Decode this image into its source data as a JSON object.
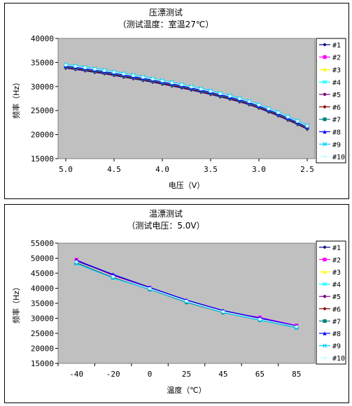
{
  "chart_data": [
    {
      "type": "line",
      "title": "压漂测试",
      "subtitle": "（测试温度：室温27℃）",
      "xlabel": "电压（V）",
      "ylabel": "频率（Hz）",
      "x": [
        5.0,
        4.9,
        4.8,
        4.7,
        4.6,
        4.5,
        4.4,
        4.3,
        4.2,
        4.1,
        4.0,
        3.9,
        3.8,
        3.7,
        3.6,
        3.5,
        3.4,
        3.3,
        3.2,
        3.1,
        3.0,
        2.9,
        2.8,
        2.7,
        2.6,
        2.5
      ],
      "xlim": [
        5.0,
        2.5
      ],
      "xticks": [
        "5.0",
        "4.5",
        "4.0",
        "3.5",
        "3.0",
        "2.5"
      ],
      "ylim": [
        15000,
        40000
      ],
      "yticks": [
        "15000",
        "20000",
        "25000",
        "30000",
        "35000",
        "40000"
      ],
      "grid": "none",
      "legend_position": "right",
      "series": [
        {
          "name": "#1",
          "color": "#000080",
          "values": [
            33800,
            33550,
            33250,
            32950,
            32650,
            32300,
            31950,
            31600,
            31250,
            30900,
            30500,
            30100,
            29700,
            29250,
            28800,
            28350,
            27850,
            27350,
            26800,
            26200,
            25500,
            24700,
            23900,
            23000,
            22100,
            21100
          ]
        },
        {
          "name": "#2",
          "color": "#ff00ff",
          "values": [
            34200,
            33950,
            33650,
            33350,
            33050,
            32700,
            32350,
            32000,
            31650,
            31300,
            30900,
            30500,
            30100,
            29650,
            29200,
            28750,
            28250,
            27750,
            27200,
            26600,
            25900,
            25100,
            24300,
            23400,
            22500,
            21500
          ]
        },
        {
          "name": "#3",
          "color": "#ffff00",
          "values": [
            34400,
            34150,
            33850,
            33550,
            33250,
            32900,
            32550,
            32200,
            31850,
            31500,
            31100,
            30700,
            30300,
            29850,
            29400,
            28950,
            28450,
            27950,
            27400,
            26800,
            26100,
            25300,
            24500,
            23600,
            22700,
            21700
          ]
        },
        {
          "name": "#4",
          "color": "#00ffff",
          "values": [
            34500,
            34250,
            33950,
            33650,
            33350,
            33000,
            32650,
            32300,
            31950,
            31600,
            31200,
            30800,
            30400,
            29950,
            29500,
            29050,
            28550,
            28050,
            27500,
            26900,
            26200,
            25400,
            24600,
            23700,
            22800,
            21800
          ]
        },
        {
          "name": "#5",
          "color": "#800080",
          "values": [
            33900,
            33650,
            33350,
            33050,
            32750,
            32400,
            32050,
            31700,
            31350,
            31000,
            30600,
            30200,
            29800,
            29350,
            28900,
            28450,
            27950,
            27450,
            26900,
            26300,
            25600,
            24800,
            24000,
            23100,
            22200,
            21200
          ]
        },
        {
          "name": "#6",
          "color": "#800000",
          "values": [
            34000,
            33750,
            33450,
            33150,
            32850,
            32500,
            32150,
            31800,
            31450,
            31100,
            30700,
            30300,
            29900,
            29450,
            29000,
            28550,
            28050,
            27550,
            27000,
            26400,
            25700,
            24900,
            24100,
            23200,
            22300,
            21300
          ]
        },
        {
          "name": "#7",
          "color": "#008080",
          "values": [
            34100,
            33850,
            33550,
            33250,
            32950,
            32600,
            32250,
            31900,
            31550,
            31200,
            30800,
            30400,
            30000,
            29550,
            29100,
            28650,
            28150,
            27650,
            27100,
            26500,
            25800,
            25000,
            24200,
            23300,
            22400,
            21400
          ]
        },
        {
          "name": "#8",
          "color": "#0000ff",
          "values": [
            34300,
            34050,
            33750,
            33450,
            33150,
            32800,
            32450,
            32100,
            31750,
            31400,
            31000,
            30600,
            30200,
            29750,
            29300,
            28850,
            28350,
            27850,
            27300,
            26700,
            26000,
            25200,
            24400,
            23500,
            22600,
            21600
          ]
        },
        {
          "name": "#9",
          "color": "#00ccff",
          "values": [
            34600,
            34350,
            34050,
            33750,
            33450,
            33100,
            32750,
            32400,
            32050,
            31700,
            31300,
            30900,
            30500,
            30050,
            29600,
            29150,
            28650,
            28150,
            27600,
            27000,
            26300,
            25500,
            24700,
            23800,
            22900,
            21900
          ]
        },
        {
          "name": "#10",
          "color": "#ccffff",
          "values": [
            34450,
            34200,
            33900,
            33600,
            33300,
            32950,
            32600,
            32250,
            31900,
            31550,
            31150,
            30750,
            30350,
            29900,
            29450,
            29000,
            28500,
            28000,
            27450,
            26850,
            26150,
            25350,
            24550,
            23650,
            22750,
            21750
          ]
        }
      ]
    },
    {
      "type": "line",
      "title": "温漂测试",
      "subtitle": "（测试电压：5.0V）",
      "xlabel": "温度（℃）",
      "ylabel": "频率（Hz）",
      "categories": [
        "-40",
        "-20",
        "0",
        "25",
        "45",
        "65",
        "85"
      ],
      "ylim": [
        15000,
        55000
      ],
      "yticks": [
        "15000",
        "20000",
        "25000",
        "30000",
        "35000",
        "40000",
        "45000",
        "50000",
        "55000"
      ],
      "grid": "none",
      "legend_position": "right",
      "series": [
        {
          "name": "#1",
          "color": "#000080",
          "values": [
            49000,
            44500,
            40000,
            36000,
            32500,
            29800,
            27200
          ]
        },
        {
          "name": "#2",
          "color": "#ff00ff",
          "values": [
            49500,
            44200,
            40200,
            35800,
            32200,
            30300,
            27600
          ]
        },
        {
          "name": "#3",
          "color": "#ffff00",
          "values": [
            48500,
            43800,
            39800,
            35500,
            32000,
            29500,
            27000
          ]
        },
        {
          "name": "#4",
          "color": "#00ffff",
          "values": [
            48700,
            43600,
            39900,
            35600,
            32100,
            29600,
            27100
          ]
        },
        {
          "name": "#5",
          "color": "#800080",
          "values": [
            49200,
            44300,
            40100,
            35900,
            32400,
            30000,
            27400
          ]
        },
        {
          "name": "#6",
          "color": "#800000",
          "values": [
            48600,
            43700,
            39700,
            35400,
            32000,
            29500,
            27000
          ]
        },
        {
          "name": "#7",
          "color": "#008080",
          "values": [
            48400,
            43500,
            39600,
            35300,
            31900,
            29400,
            26900
          ]
        },
        {
          "name": "#8",
          "color": "#0000ff",
          "values": [
            49300,
            44600,
            40300,
            36100,
            32600,
            30100,
            27500
          ]
        },
        {
          "name": "#9",
          "color": "#00ccff",
          "values": [
            48200,
            43400,
            39700,
            35500,
            32000,
            29400,
            26800
          ]
        },
        {
          "name": "#10",
          "color": "#ccffff",
          "values": [
            48800,
            43900,
            39900,
            35700,
            32200,
            29700,
            27200
          ]
        }
      ]
    }
  ]
}
